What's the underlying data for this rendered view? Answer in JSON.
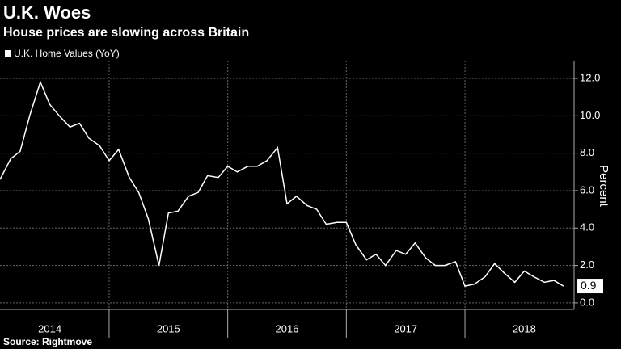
{
  "chart_data": {
    "type": "line",
    "title": "U.K. Woes",
    "subtitle": "House prices are slowing across Britain",
    "y_label": "Percent",
    "source": "Source: Rightmove",
    "series": [
      {
        "name": "U.K. Home Values (YoY)",
        "color": "#ffffff",
        "x": [
          2014.08,
          2014.17,
          2014.25,
          2014.33,
          2014.42,
          2014.5,
          2014.58,
          2014.67,
          2014.75,
          2014.83,
          2014.92,
          2015.0,
          2015.08,
          2015.17,
          2015.25,
          2015.33,
          2015.42,
          2015.5,
          2015.58,
          2015.67,
          2015.75,
          2015.83,
          2015.92,
          2016.0,
          2016.08,
          2016.17,
          2016.25,
          2016.33,
          2016.42,
          2016.5,
          2016.58,
          2016.67,
          2016.75,
          2016.83,
          2016.92,
          2017.0,
          2017.08,
          2017.17,
          2017.25,
          2017.33,
          2017.42,
          2017.5,
          2017.58,
          2017.67,
          2017.75,
          2017.83,
          2017.92,
          2018.0,
          2018.08,
          2018.17,
          2018.25,
          2018.33,
          2018.42,
          2018.5,
          2018.58,
          2018.67,
          2018.75,
          2018.83
        ],
        "values": [
          6.6,
          7.7,
          8.1,
          10.0,
          11.8,
          10.6,
          10.0,
          9.4,
          9.6,
          8.8,
          8.4,
          7.6,
          8.2,
          6.7,
          5.9,
          4.5,
          2.0,
          4.8,
          4.9,
          5.7,
          5.9,
          6.8,
          6.7,
          7.3,
          7.0,
          7.3,
          7.3,
          7.6,
          8.3,
          5.3,
          5.7,
          5.2,
          5.0,
          4.2,
          4.3,
          4.3,
          3.1,
          2.3,
          2.6,
          2.0,
          2.8,
          2.6,
          3.2,
          2.4,
          2.0,
          2.0,
          2.2,
          0.9,
          1.0,
          1.4,
          2.1,
          1.6,
          1.1,
          1.7,
          1.4,
          1.1,
          1.2,
          0.9
        ]
      }
    ],
    "xlim": [
      2014.08,
      2018.92
    ],
    "xgrid": [
      2015,
      2016,
      2017,
      2018
    ],
    "xticks": [
      {
        "value": 2014.5,
        "label": "2014"
      },
      {
        "value": 2015.5,
        "label": "2015"
      },
      {
        "value": 2016.5,
        "label": "2016"
      },
      {
        "value": 2017.5,
        "label": "2017"
      },
      {
        "value": 2018.5,
        "label": "2018"
      }
    ],
    "ylim": [
      -0.35,
      12.95
    ],
    "yticks": [
      {
        "value": 0,
        "label": "0.0"
      },
      {
        "value": 2,
        "label": "2.0"
      },
      {
        "value": 4,
        "label": "4.0"
      },
      {
        "value": 6,
        "label": "6.0"
      },
      {
        "value": 8,
        "label": "8.0"
      },
      {
        "value": 10,
        "label": "10.0"
      },
      {
        "value": 12,
        "label": "12.0"
      }
    ],
    "grid": true
  }
}
